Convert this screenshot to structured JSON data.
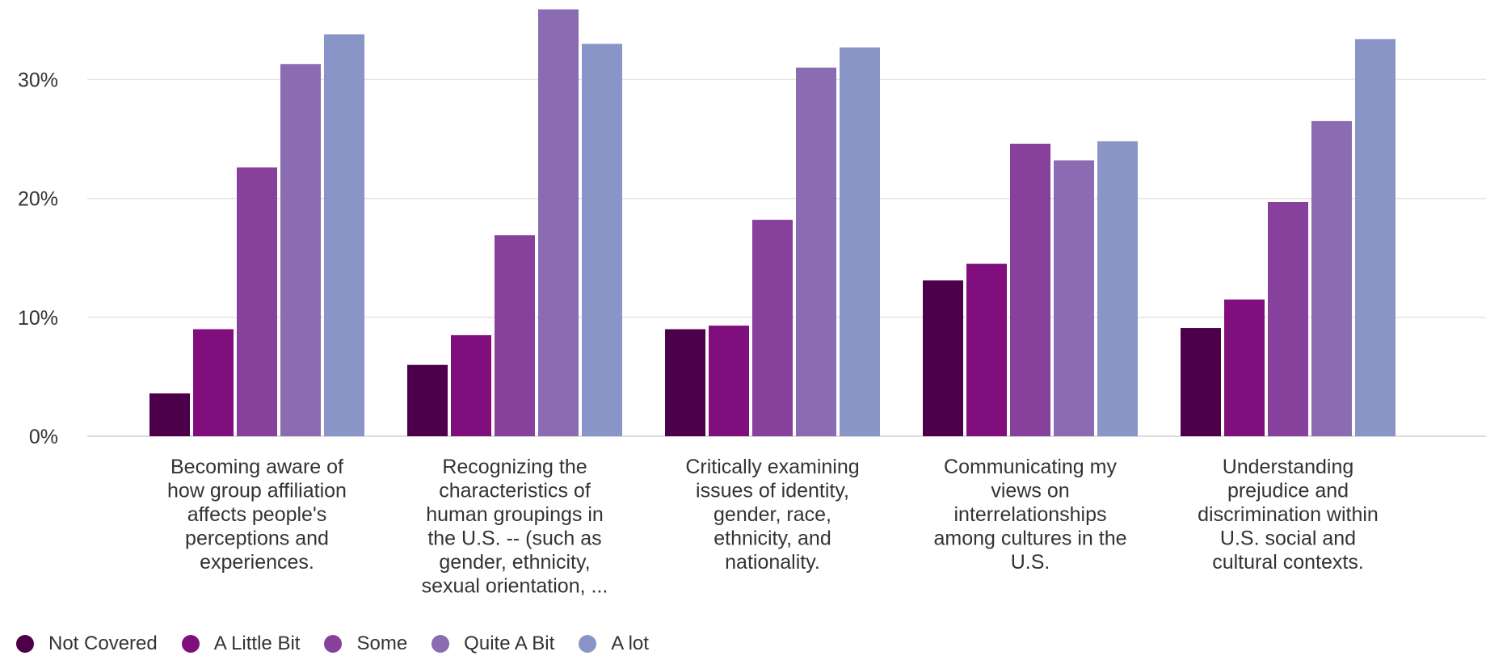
{
  "chart_data": {
    "type": "bar",
    "categories": [
      "Becoming aware of how group affiliation affects people's perceptions and experiences.",
      "Recognizing the characteristics of human groupings in the U.S. -- (such as gender, ethnicity, sexual orientation, ...",
      "Critically examining issues of identity, gender, race, ethnicity, and nationality.",
      "Communicating my views on interrelationships among cultures in the U.S.",
      "Understanding prejudice and discrimination within U.S. social and cultural contexts."
    ],
    "category_lines": [
      [
        "Becoming aware of",
        "how group affiliation",
        "affects people's",
        "perceptions and",
        "experiences."
      ],
      [
        "Recognizing the",
        "characteristics of",
        "human groupings in",
        "the U.S. -- (such as",
        "gender, ethnicity,",
        "sexual orientation, ..."
      ],
      [
        "Critically examining",
        "issues of identity,",
        "gender, race,",
        "ethnicity, and",
        "nationality."
      ],
      [
        "Communicating my",
        "views on",
        "interrelationships",
        "among cultures in the",
        "U.S."
      ],
      [
        "Understanding",
        "prejudice and",
        "discrimination within",
        "U.S. social and",
        "cultural contexts."
      ]
    ],
    "series": [
      {
        "name": "Not Covered",
        "color": "#4b0049",
        "values": [
          3.6,
          6.0,
          9.0,
          13.1,
          9.1
        ]
      },
      {
        "name": "A Little Bit",
        "color": "#800e7c",
        "values": [
          9.0,
          8.5,
          9.3,
          14.5,
          11.5
        ]
      },
      {
        "name": "Some",
        "color": "#87409b",
        "values": [
          22.6,
          16.9,
          18.2,
          24.6,
          19.7
        ]
      },
      {
        "name": "Quite A Bit",
        "color": "#8b6bb1",
        "values": [
          31.3,
          35.9,
          31.0,
          23.2,
          26.5
        ]
      },
      {
        "name": "A lot",
        "color": "#8a95c7",
        "values": [
          33.8,
          33.0,
          32.7,
          24.8,
          33.4
        ]
      }
    ],
    "y_ticks": [
      "0%",
      "10%",
      "20%",
      "30%"
    ],
    "y_tick_values": [
      0,
      10,
      20,
      30
    ],
    "ylim": [
      0,
      36
    ],
    "grid": true,
    "legend_position": "bottom-left",
    "title": "",
    "xlabel": "",
    "ylabel": ""
  }
}
